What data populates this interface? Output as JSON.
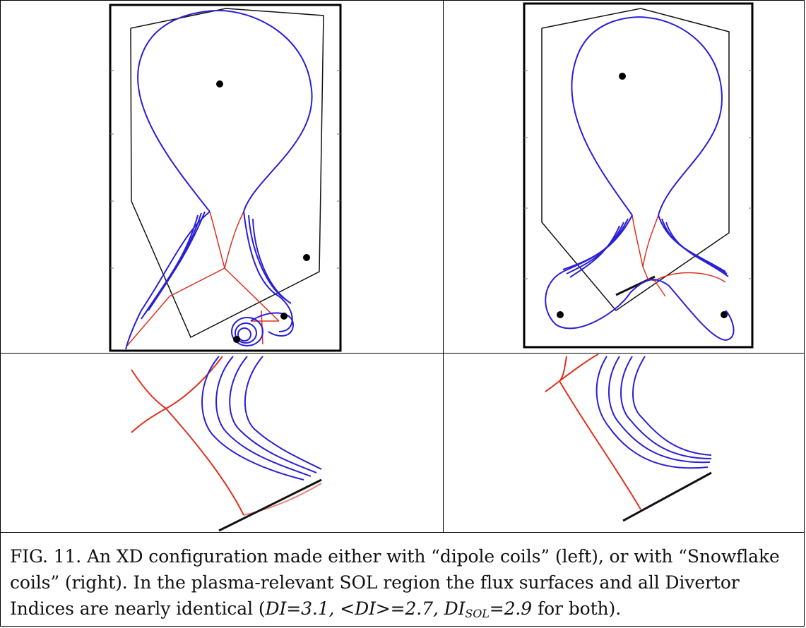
{
  "figure": {
    "panels": [
      {
        "name": "dipole-coils",
        "position": "top-left"
      },
      {
        "name": "snowflake-coils",
        "position": "top-right"
      },
      {
        "name": "dipole-coils-zoom",
        "position": "bottom-left"
      },
      {
        "name": "snowflake-coils-zoom",
        "position": "bottom-right"
      }
    ],
    "colors": {
      "flux_surface": "#2a1fd6",
      "separatrix": "#e0301f",
      "wall": "#111111",
      "coil": "#000000"
    }
  },
  "caption": {
    "part1": "FIG. 11.  An XD configuration made either with “dipole coils” (left), or with “Snowflake coils” (right). In the plasma-relevant SOL region the flux surfaces and all Divertor Indices are nearly identical (",
    "di": "DI=3.1, <DI>=2.7, DI",
    "sub": "SOL",
    "di_tail": "=2.9",
    "part2": " for both)."
  }
}
